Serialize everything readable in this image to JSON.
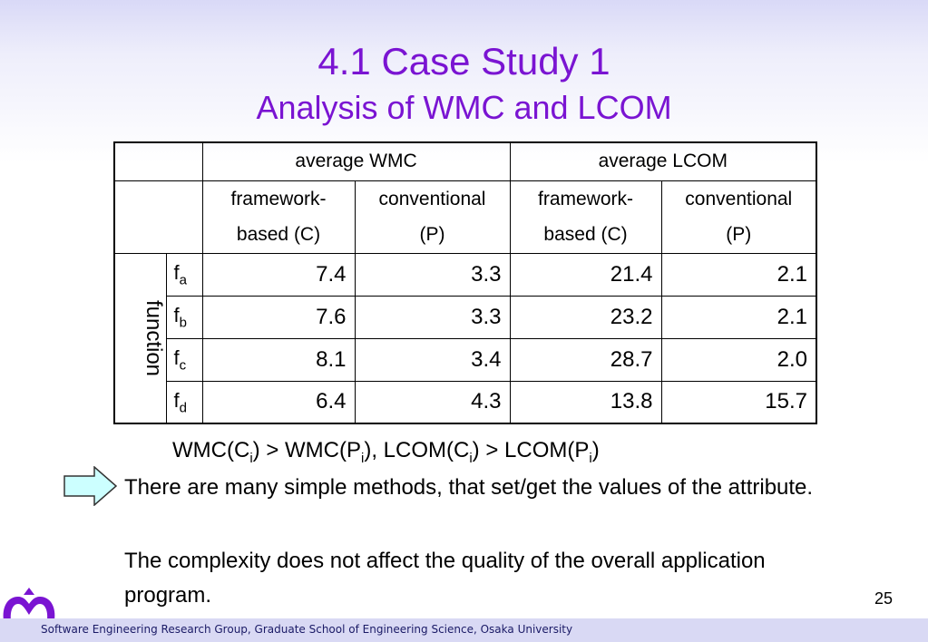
{
  "slide": {
    "title_line1": "4.1 Case Study 1",
    "title_line2": "Analysis of WMC and LCOM",
    "page_number": "25",
    "footer": "Software Engineering Research Group, Graduate School of Engineering Science, Osaka University"
  },
  "table": {
    "group_headers": [
      "average WMC",
      "average LCOM"
    ],
    "sub_headers": [
      {
        "line1": "framework-",
        "line2": "based (C)"
      },
      {
        "line1": "conventional",
        "line2": "(P)"
      },
      {
        "line1": "framework-",
        "line2": "based (C)"
      },
      {
        "line1": "conventional",
        "line2": "(P)"
      }
    ],
    "row_group_label": "function",
    "rows": [
      {
        "name": "f",
        "sub": "a",
        "values": [
          "7.4",
          "3.3",
          "21.4",
          "2.1"
        ]
      },
      {
        "name": "f",
        "sub": "b",
        "values": [
          "7.6",
          "3.3",
          "23.2",
          "2.1"
        ]
      },
      {
        "name": "f",
        "sub": "c",
        "values": [
          "8.1",
          "3.4",
          "28.7",
          "2.0"
        ]
      },
      {
        "name": "f",
        "sub": "d",
        "values": [
          "6.4",
          "4.3",
          "13.8",
          "15.7"
        ]
      }
    ]
  },
  "formula": {
    "p1": "WMC(C",
    "s1": "i",
    "p2": ") > WMC(P",
    "s2": "i",
    "p3": "), LCOM(C",
    "s3": "i",
    "p4": ") > LCOM(P",
    "s4": "i",
    "p5": ")"
  },
  "body": {
    "text1": "There are many simple methods, that set/get the values of the attribute.",
    "text2": "The complexity does not affect the quality of the overall application program."
  },
  "colors": {
    "title": "#7a14d2",
    "arrow_fill": "#ccffff",
    "logo": "#7a14d2",
    "footer_bar": "#d9d9f4"
  },
  "icons": {
    "arrow": "right-arrow-icon",
    "logo": "university-logo-icon"
  }
}
